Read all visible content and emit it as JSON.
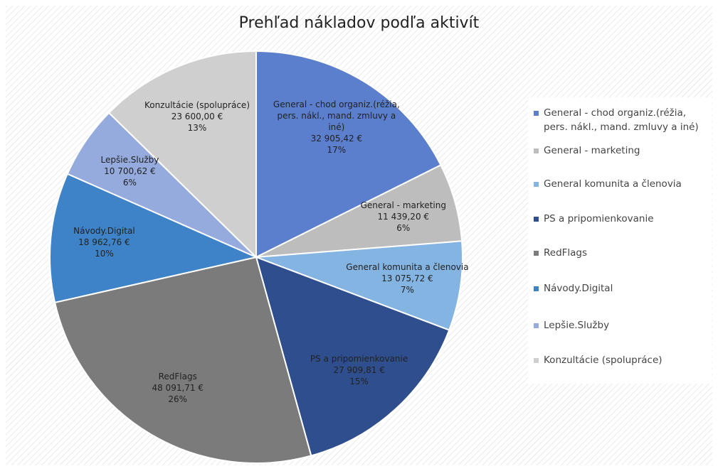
{
  "chart_data": {
    "type": "pie",
    "title": "Prehľad nákladov podľa aktivít",
    "categories": [
      "General - chod organiz.(réžia, pers. nákl., mand. zmluvy a iné)",
      "General - marketing",
      "General komunita a členovia",
      "PS a pripomienkovanie",
      "RedFlags",
      "Návody.Digital",
      "Lepšie.Služby",
      "Konzultácie (spolupráce)"
    ],
    "values": [
      32905.42,
      11439.2,
      13075.72,
      27909.81,
      48091.71,
      18962.76,
      10700.62,
      23600.0
    ],
    "value_labels": [
      "32 905,42 €",
      "11 439,20 €",
      "13 075,72 €",
      "27 909,81 €",
      "48 091,71 €",
      "18 962,76 €",
      "10 700,62 €",
      "23 600,00 €"
    ],
    "percent_labels": [
      "17%",
      "6%",
      "7%",
      "15%",
      "26%",
      "10%",
      "6%",
      "13%"
    ],
    "colors": [
      "#5b7fcd",
      "#bdbdbd",
      "#84b4e2",
      "#2f4e8e",
      "#7b7b7b",
      "#3e83c7",
      "#95abde",
      "#cfcfcf"
    ],
    "legend": "right"
  }
}
